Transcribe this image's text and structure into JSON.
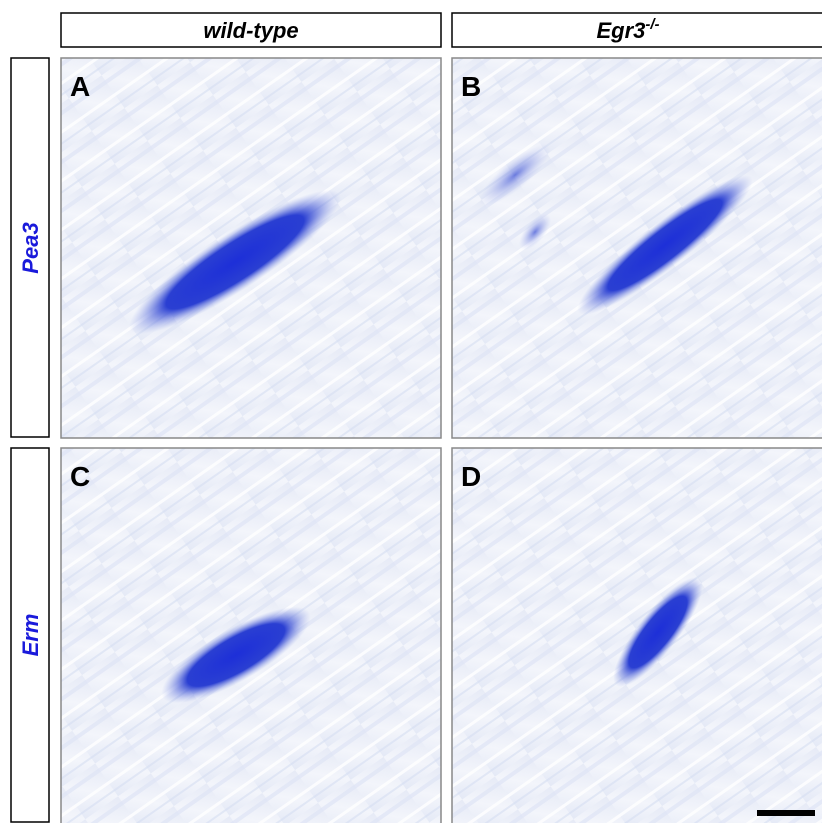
{
  "columns": [
    {
      "text": "wild-type"
    },
    {
      "text": "Egr3",
      "superscript": "-/-"
    }
  ],
  "rows": [
    {
      "text": "Pea3"
    },
    {
      "text": "Erm"
    }
  ],
  "panels": [
    "A",
    "B",
    "C",
    "D"
  ]
}
